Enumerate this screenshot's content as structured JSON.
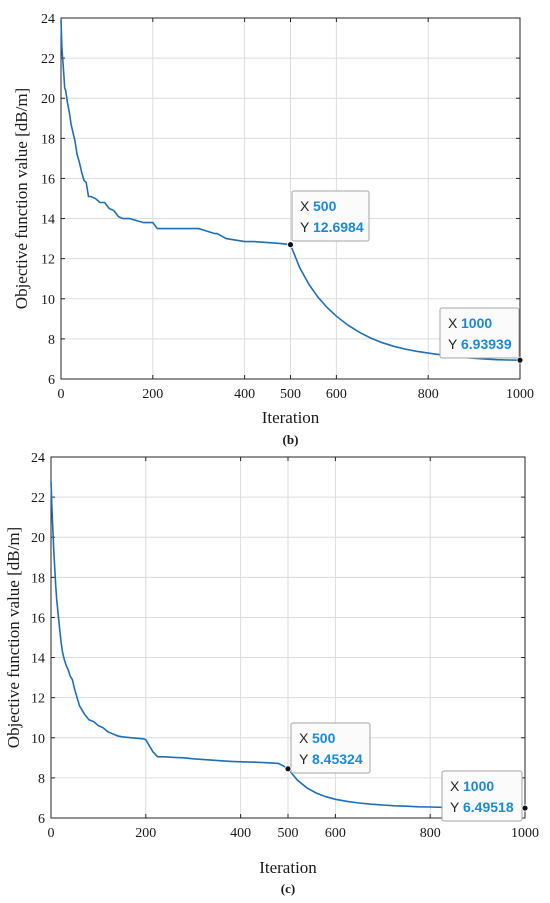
{
  "chart_data": [
    {
      "type": "line",
      "caption": "(b)",
      "xlabel": "Iteration",
      "ylabel": "Objective function value [dB/m]",
      "xlim": [
        0,
        1000
      ],
      "ylim": [
        6,
        24
      ],
      "xticks": [
        0,
        200,
        400,
        500,
        600,
        800,
        1000
      ],
      "yticks": [
        6,
        8,
        10,
        12,
        14,
        16,
        18,
        20,
        22,
        24
      ],
      "grid": true,
      "series": [
        {
          "color": "#1f6fb4",
          "x": [
            0,
            2,
            4,
            6,
            8,
            10,
            14,
            18,
            22,
            26,
            30,
            35,
            40,
            45,
            50,
            55,
            60,
            65,
            75,
            85,
            95,
            105,
            115,
            125,
            135,
            150,
            165,
            180,
            200,
            210,
            240,
            300,
            335,
            340,
            360,
            400,
            420,
            450,
            480,
            500,
            520,
            540,
            560,
            580,
            600,
            625,
            650,
            675,
            700,
            725,
            750,
            775,
            800,
            825,
            850,
            875,
            900,
            925,
            950,
            975,
            1000
          ],
          "y": [
            23.9,
            22.5,
            21.9,
            21.2,
            20.5,
            20.4,
            19.8,
            19.3,
            18.7,
            18.3,
            17.9,
            17.2,
            16.8,
            16.3,
            15.9,
            15.8,
            15.1,
            15.1,
            15.0,
            14.8,
            14.8,
            14.5,
            14.4,
            14.1,
            14.0,
            14.0,
            13.9,
            13.8,
            13.8,
            13.5,
            13.5,
            13.5,
            13.25,
            13.25,
            13.0,
            12.85,
            12.85,
            12.8,
            12.75,
            12.6984,
            11.55,
            10.72,
            10.08,
            9.56,
            9.13,
            8.69,
            8.33,
            8.04,
            7.81,
            7.63,
            7.49,
            7.38,
            7.29,
            7.21,
            7.14,
            7.08,
            7.03,
            6.99,
            6.96,
            6.945,
            6.93939
          ]
        }
      ],
      "annotations": [
        {
          "x_label": "X",
          "y_label": "Y",
          "x_value": "500",
          "y_value": "12.6984",
          "x": 500,
          "y": 12.6984
        },
        {
          "x_label": "X",
          "y_label": "Y",
          "x_value": "1000",
          "y_value": "6.93939",
          "x": 1000,
          "y": 6.93939
        }
      ]
    },
    {
      "type": "line",
      "caption": "(c)",
      "xlabel": "Iteration",
      "ylabel": "Objective function value [dB/m]",
      "xlim": [
        0,
        1000
      ],
      "ylim": [
        6,
        24
      ],
      "xticks": [
        0,
        200,
        400,
        500,
        600,
        800,
        1000
      ],
      "yticks": [
        6,
        8,
        10,
        12,
        14,
        16,
        18,
        20,
        22,
        24
      ],
      "grid": true,
      "series": [
        {
          "color": "#1f6fb4",
          "x": [
            0,
            2,
            4,
            6,
            8,
            10,
            12,
            15,
            18,
            21,
            24,
            28,
            32,
            36,
            40,
            45,
            50,
            55,
            60,
            65,
            70,
            80,
            90,
            100,
            110,
            120,
            130,
            140,
            150,
            170,
            195,
            200,
            215,
            225,
            240,
            260,
            280,
            300,
            330,
            360,
            380,
            400,
            430,
            460,
            480,
            490,
            500,
            520,
            540,
            560,
            580,
            600,
            625,
            650,
            675,
            700,
            725,
            750,
            775,
            800,
            825,
            850,
            875,
            900,
            925,
            950,
            975,
            1000
          ],
          "y": [
            22.8,
            21.5,
            20.3,
            19.3,
            18.4,
            17.6,
            16.9,
            16.2,
            15.5,
            14.8,
            14.3,
            13.9,
            13.6,
            13.4,
            13.1,
            12.9,
            12.4,
            12.0,
            11.6,
            11.4,
            11.2,
            10.9,
            10.8,
            10.6,
            10.5,
            10.3,
            10.2,
            10.1,
            10.05,
            10.0,
            9.95,
            9.9,
            9.3,
            9.05,
            9.05,
            9.02,
            9.0,
            8.95,
            8.9,
            8.85,
            8.82,
            8.8,
            8.78,
            8.75,
            8.72,
            8.6,
            8.45324,
            7.88,
            7.5,
            7.24,
            7.06,
            6.93,
            6.83,
            6.75,
            6.69,
            6.65,
            6.61,
            6.59,
            6.56,
            6.55,
            6.535,
            6.525,
            6.515,
            6.51,
            6.505,
            6.5,
            6.497,
            6.49518
          ]
        }
      ],
      "annotations": [
        {
          "x_label": "X",
          "y_label": "Y",
          "x_value": "500",
          "y_value": "8.45324",
          "x": 500,
          "y": 8.45324
        },
        {
          "x_label": "X",
          "y_label": "Y",
          "x_value": "1000",
          "y_value": "6.49518",
          "x": 1000,
          "y": 6.49518
        }
      ]
    }
  ]
}
